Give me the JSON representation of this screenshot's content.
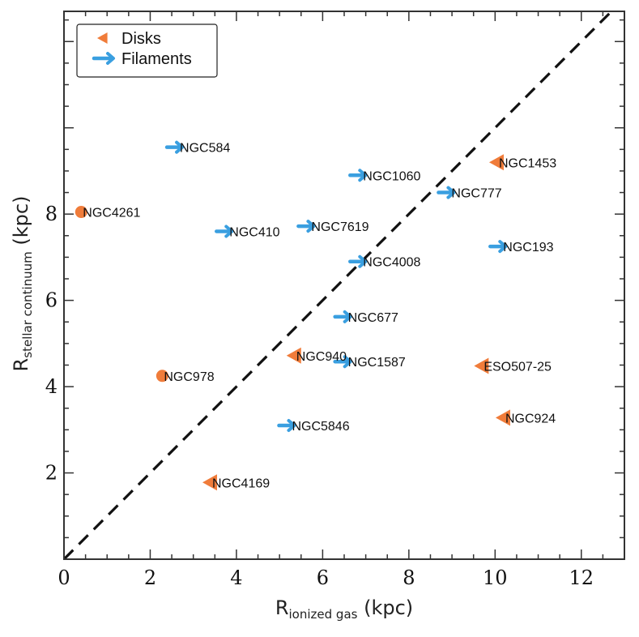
{
  "chart_data": {
    "type": "scatter",
    "xlabel_main": "R",
    "xlabel_sub": "ionized gas",
    "xlabel_unit": " (kpc)",
    "ylabel_main": "R",
    "ylabel_sub": "stellar continuum",
    "ylabel_unit": " (kpc)",
    "xlim": [
      0,
      13
    ],
    "ylim": [
      0,
      12.7
    ],
    "x_ticks": [
      0,
      2,
      4,
      6,
      8,
      10,
      12
    ],
    "y_ticks": [
      2,
      4,
      6,
      8
    ],
    "reference_line": "y = x",
    "legend": {
      "position": "top-left",
      "entries": [
        {
          "label": "Disks",
          "marker": "triangle-left",
          "color": "#f07c3a"
        },
        {
          "label": "Filaments",
          "marker": "arrow-right",
          "color": "#3a9fe0"
        }
      ]
    },
    "colors": {
      "disk": "#f07c3a",
      "filament": "#3a9fe0",
      "circle": "#f07c3a"
    },
    "points": [
      {
        "name": "NGC584",
        "x": 2.65,
        "y": 9.55,
        "type": "filament"
      },
      {
        "name": "NGC1060",
        "x": 6.9,
        "y": 8.9,
        "type": "filament"
      },
      {
        "name": "NGC777",
        "x": 8.95,
        "y": 8.5,
        "type": "filament"
      },
      {
        "name": "NGC410",
        "x": 3.8,
        "y": 7.6,
        "type": "filament"
      },
      {
        "name": "NGC7619",
        "x": 5.7,
        "y": 7.72,
        "type": "filament"
      },
      {
        "name": "NGC193",
        "x": 10.15,
        "y": 7.25,
        "type": "filament"
      },
      {
        "name": "NGC4008",
        "x": 6.9,
        "y": 6.9,
        "type": "filament"
      },
      {
        "name": "NGC677",
        "x": 6.55,
        "y": 5.62,
        "type": "filament"
      },
      {
        "name": "NGC1587",
        "x": 6.55,
        "y": 4.58,
        "type": "filament"
      },
      {
        "name": "NGC5846",
        "x": 5.25,
        "y": 3.1,
        "type": "filament"
      },
      {
        "name": "NGC1453",
        "x": 10.05,
        "y": 9.2,
        "type": "disk"
      },
      {
        "name": "NGC940",
        "x": 5.35,
        "y": 4.72,
        "type": "disk"
      },
      {
        "name": "ESO507-25",
        "x": 9.7,
        "y": 4.48,
        "type": "disk"
      },
      {
        "name": "NGC924",
        "x": 10.2,
        "y": 3.28,
        "type": "disk"
      },
      {
        "name": "NGC4169",
        "x": 3.4,
        "y": 1.78,
        "type": "disk"
      },
      {
        "name": "NGC4261",
        "x": 0.4,
        "y": 8.05,
        "type": "circle"
      },
      {
        "name": "NGC978",
        "x": 2.28,
        "y": 4.25,
        "type": "circle"
      }
    ]
  }
}
